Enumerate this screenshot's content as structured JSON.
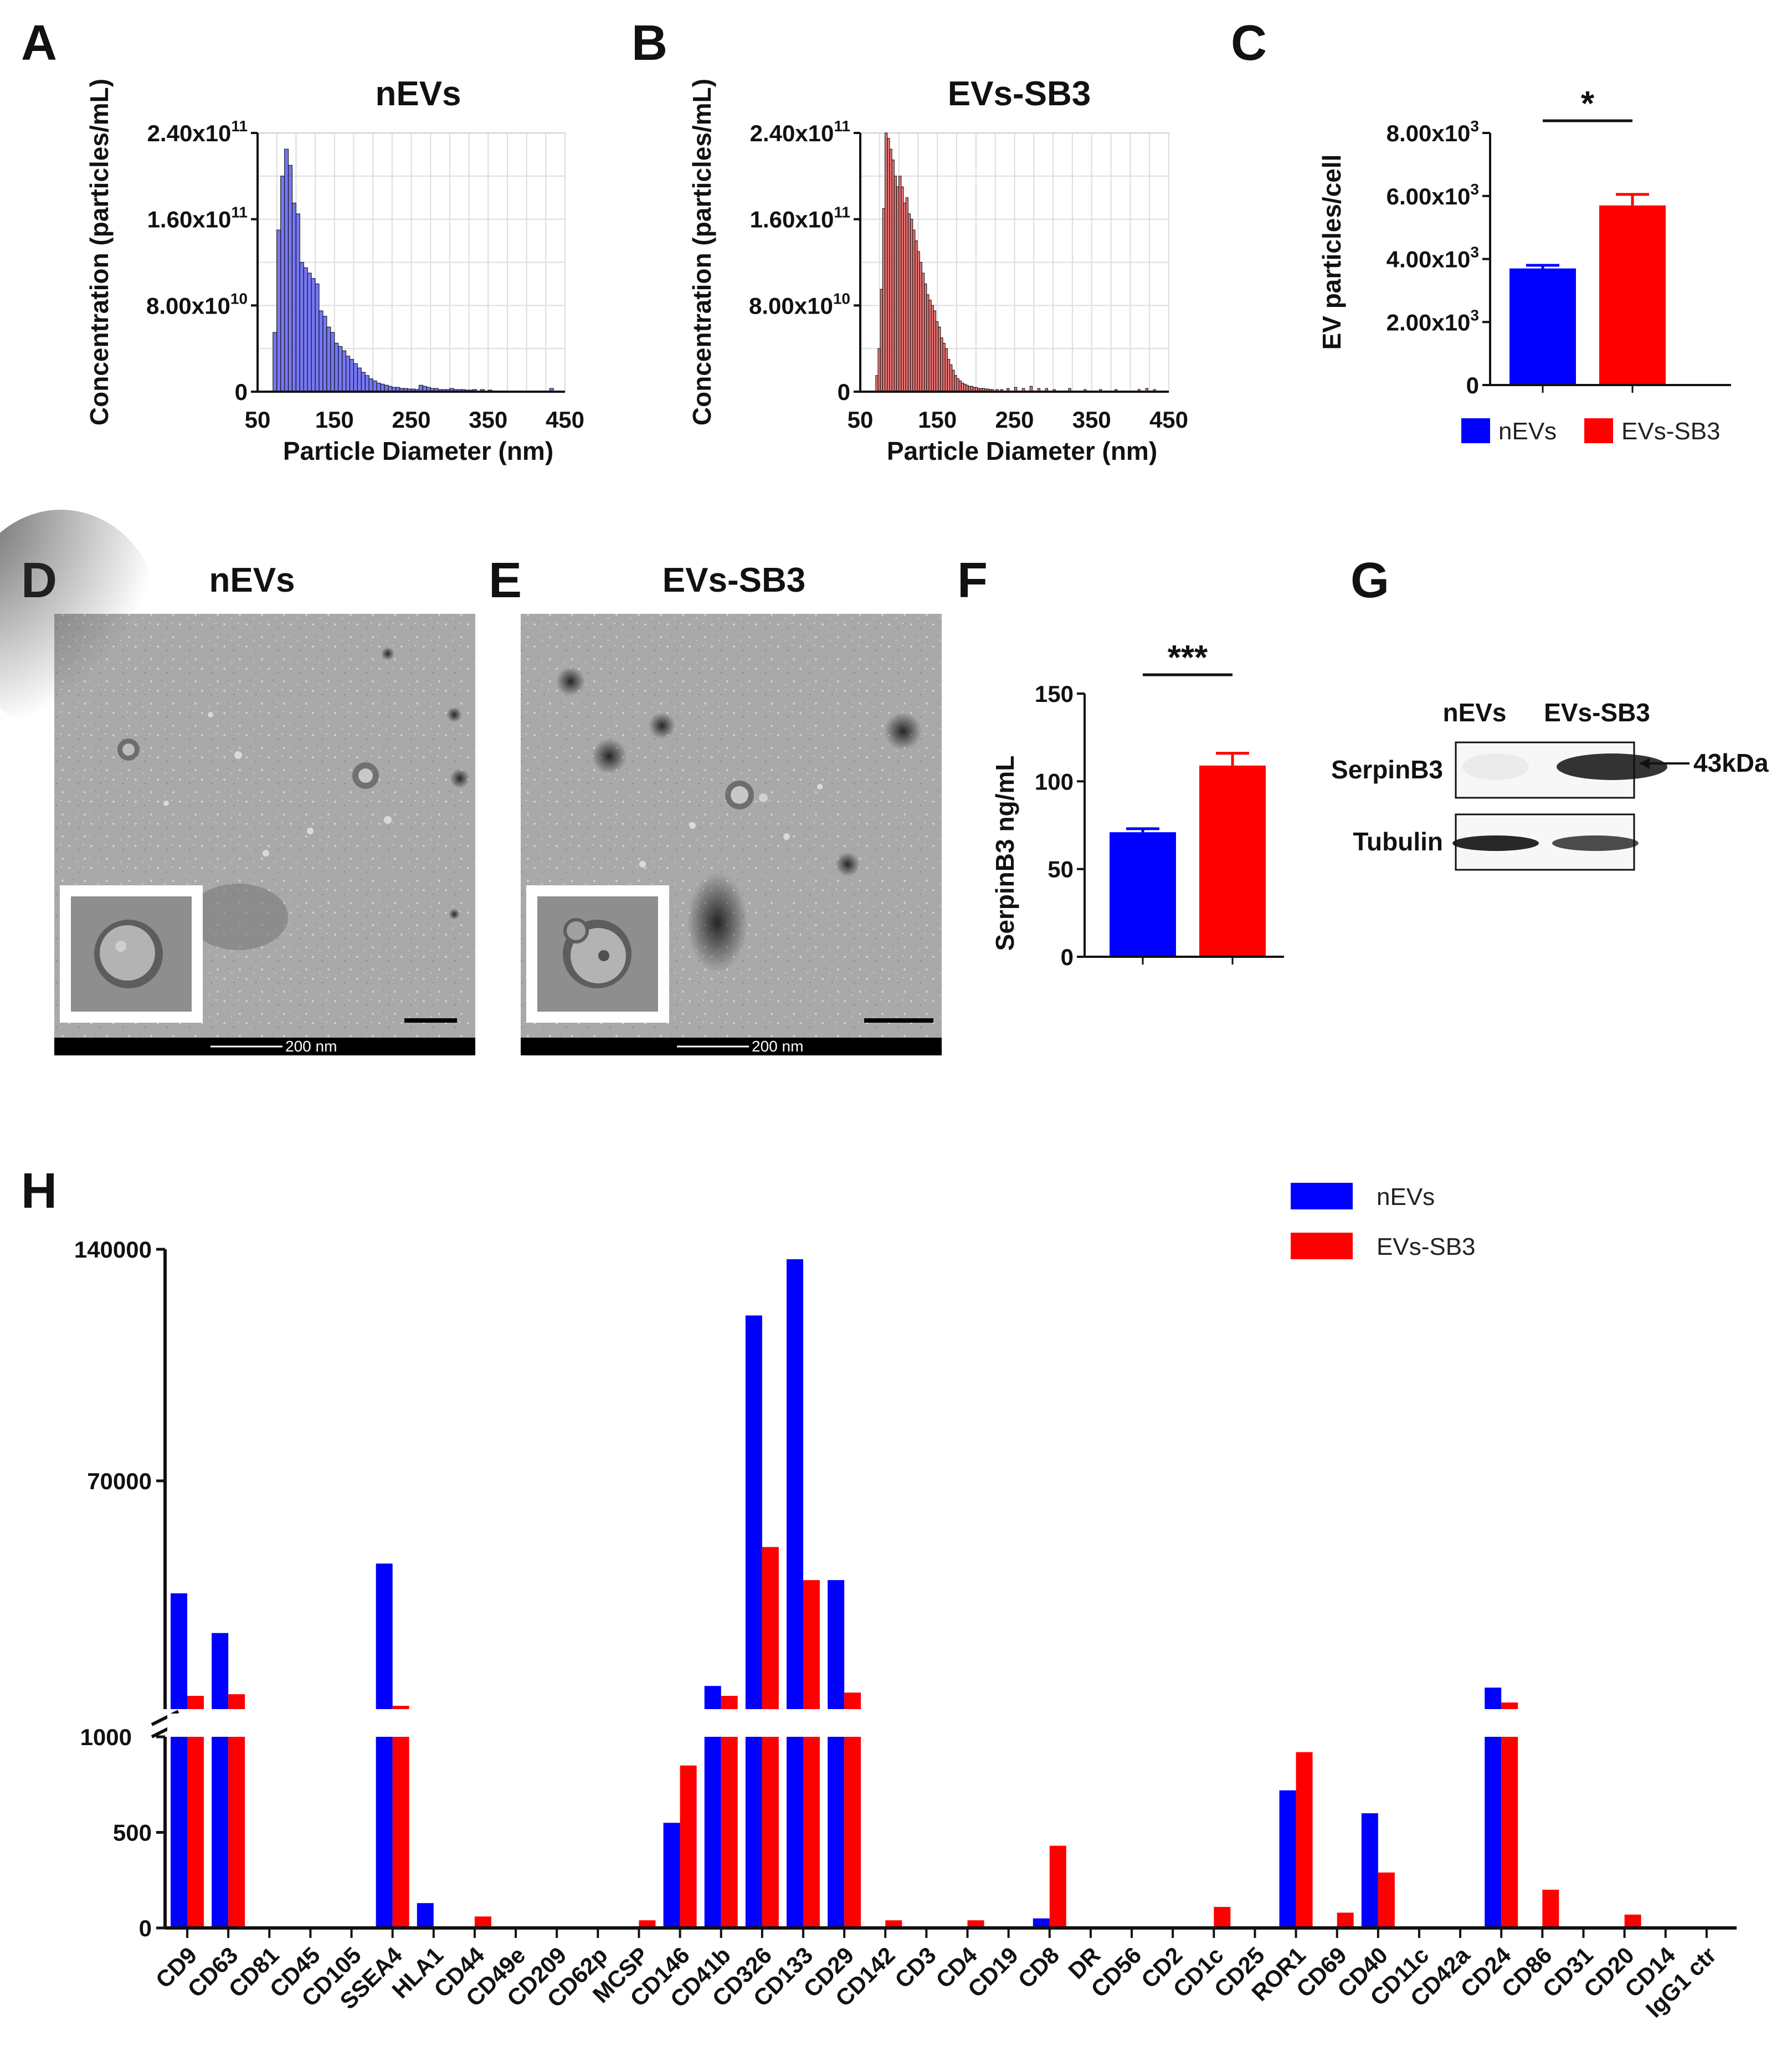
{
  "colors": {
    "nevs": "#0000FF",
    "evs_sb3": "#FF0000",
    "hist_nevs": "#6B6BF5",
    "hist_evs": "#F06B6B",
    "axis": "#111111",
    "grid": "#DDDDDD"
  },
  "panels": {
    "A": {
      "letter": "A",
      "title": "nEVs",
      "xlabel": "Particle Diameter (nm)",
      "ylabel": "Concentration (particles/mL)",
      "yticks": [
        {
          "value": 0,
          "base": "0",
          "exp": ""
        },
        {
          "value": 80000000000,
          "base": "8.00x10",
          "exp": "10"
        },
        {
          "value": 160000000000,
          "base": "1.60x10",
          "exp": "11"
        },
        {
          "value": 240000000000,
          "base": "2.40x10",
          "exp": "11"
        }
      ],
      "xticks": [
        "50",
        "150",
        "250",
        "350",
        "450"
      ]
    },
    "B": {
      "letter": "B",
      "title": "EVs-SB3",
      "xlabel": "Particle Diameter (nm)",
      "ylabel": "Concentration (particles/mL)",
      "yticks": [
        {
          "value": 0,
          "base": "0",
          "exp": ""
        },
        {
          "value": 80000000000,
          "base": "8.00x10",
          "exp": "10"
        },
        {
          "value": 160000000000,
          "base": "1.60x10",
          "exp": "11"
        },
        {
          "value": 240000000000,
          "base": "2.40x10",
          "exp": "11"
        }
      ],
      "xticks": [
        "50",
        "150",
        "250",
        "350",
        "450"
      ]
    },
    "C": {
      "letter": "C",
      "ylabel": "EV particles/cell",
      "significance": "*",
      "yticks": [
        {
          "value": 0,
          "base": "0",
          "exp": ""
        },
        {
          "value": 2000,
          "base": "2.00x10",
          "exp": "3"
        },
        {
          "value": 4000,
          "base": "4.00x10",
          "exp": "3"
        },
        {
          "value": 6000,
          "base": "6.00x10",
          "exp": "3"
        },
        {
          "value": 8000,
          "base": "8.00x10",
          "exp": "3"
        }
      ],
      "legend": [
        "nEVs",
        "EVs-SB3"
      ]
    },
    "D": {
      "letter": "D",
      "title": "nEVs",
      "scale_label": "200 nm"
    },
    "E": {
      "letter": "E",
      "title": "EVs-SB3",
      "scale_label": "200 nm"
    },
    "F": {
      "letter": "F",
      "ylabel": "SerpinB3 ng/mL",
      "significance": "***",
      "yticks": [
        "0",
        "50",
        "100",
        "150"
      ]
    },
    "G": {
      "letter": "G",
      "lanes": [
        "nEVs",
        "EVs-SB3"
      ],
      "rows": [
        "SerpinB3",
        "Tubulin"
      ],
      "marker": "43kDa",
      "intensity": {
        "serpinb3": [
          0.05,
          0.85
        ],
        "tubulin": [
          0.9,
          0.75
        ]
      }
    },
    "H": {
      "letter": "H",
      "yticks": [
        "0",
        "500",
        "1000",
        "70000",
        "140000"
      ],
      "legend": [
        "nEVs",
        "EVs-SB3"
      ]
    }
  },
  "chart_data": [
    {
      "panel": "A",
      "type": "bar",
      "title": "nEVs",
      "xlabel": "Particle Diameter (nm)",
      "ylabel": "Concentration (particles/mL)",
      "xlim": [
        50,
        450
      ],
      "ylim": [
        0,
        240000000000
      ],
      "bin_width": 5,
      "bin_start": [
        70,
        75,
        80,
        85,
        90,
        95,
        100,
        105,
        110,
        115,
        120,
        125,
        130,
        135,
        140,
        145,
        150,
        155,
        160,
        165,
        170,
        175,
        180,
        185,
        190,
        195,
        200,
        205,
        210,
        215,
        220,
        225,
        230,
        235,
        240,
        245,
        250,
        255,
        260,
        265,
        270,
        275,
        280,
        285,
        290,
        295,
        300,
        305,
        310,
        315,
        320,
        325,
        330,
        340,
        350,
        430
      ],
      "values": [
        55000000000,
        150000000000,
        200000000000,
        225000000000,
        210000000000,
        175000000000,
        165000000000,
        120000000000,
        115000000000,
        110000000000,
        105000000000,
        100000000000,
        75000000000,
        70000000000,
        60000000000,
        55000000000,
        45000000000,
        42000000000,
        38000000000,
        33000000000,
        30000000000,
        26000000000,
        22000000000,
        18000000000,
        15000000000,
        12000000000,
        10000000000,
        8000000000,
        7000000000,
        6000000000,
        5000000000,
        4000000000,
        4000000000,
        3000000000,
        3000000000,
        2500000000,
        2500000000,
        2000000000,
        6000000000,
        5000000000,
        4000000000,
        3000000000,
        3000000000,
        2000000000,
        2000000000,
        2000000000,
        3000000000,
        2000000000,
        2000000000,
        2000000000,
        1500000000,
        1500000000,
        2000000000,
        2000000000,
        1500000000,
        3000000000
      ]
    },
    {
      "panel": "B",
      "type": "bar",
      "title": "EVs-SB3",
      "xlabel": "Particle Diameter (nm)",
      "ylabel": "Concentration (particles/mL)",
      "xlim": [
        50,
        450
      ],
      "ylim": [
        0,
        240000000000
      ],
      "bin_width": 3,
      "bin_start": [
        70,
        73,
        76,
        79,
        82,
        85,
        88,
        91,
        94,
        97,
        100,
        103,
        106,
        109,
        112,
        115,
        118,
        121,
        124,
        127,
        130,
        133,
        136,
        139,
        142,
        145,
        148,
        151,
        154,
        157,
        160,
        163,
        166,
        169,
        172,
        175,
        178,
        181,
        184,
        187,
        190,
        193,
        196,
        199,
        202,
        205,
        208,
        211,
        214,
        217,
        220,
        226,
        232,
        240,
        250,
        260,
        270,
        280,
        290,
        300,
        320,
        340,
        360,
        380,
        410,
        420,
        430
      ],
      "values": [
        15000000000,
        40000000000,
        95000000000,
        170000000000,
        240000000000,
        235000000000,
        225000000000,
        215000000000,
        200000000000,
        190000000000,
        200000000000,
        190000000000,
        175000000000,
        180000000000,
        165000000000,
        160000000000,
        150000000000,
        140000000000,
        130000000000,
        120000000000,
        110000000000,
        100000000000,
        90000000000,
        85000000000,
        80000000000,
        75000000000,
        65000000000,
        60000000000,
        50000000000,
        45000000000,
        40000000000,
        30000000000,
        25000000000,
        20000000000,
        15000000000,
        12000000000,
        10000000000,
        8000000000,
        7000000000,
        6000000000,
        5000000000,
        5000000000,
        4000000000,
        4000000000,
        3000000000,
        3000000000,
        3000000000,
        2500000000,
        2500000000,
        2000000000,
        2000000000,
        2000000000,
        2000000000,
        3000000000,
        4000000000,
        3000000000,
        5000000000,
        3000000000,
        3000000000,
        2000000000,
        3000000000,
        2000000000,
        2000000000,
        2000000000,
        2000000000,
        3000000000,
        2000000000
      ]
    },
    {
      "panel": "C",
      "type": "bar",
      "ylabel": "EV particles/cell",
      "categories": [
        "nEVs",
        "EVs-SB3"
      ],
      "values": [
        3700,
        5700
      ],
      "errors": [
        100,
        350
      ],
      "ylim": [
        0,
        8000
      ],
      "significance": "*"
    },
    {
      "panel": "F",
      "type": "bar",
      "ylabel": "SerpinB3 ng/mL",
      "categories": [
        "nEVs",
        "EVs-SB3"
      ],
      "values": [
        71,
        109
      ],
      "errors": [
        2,
        7
      ],
      "ylim": [
        0,
        150
      ],
      "significance": "***"
    },
    {
      "panel": "H",
      "type": "bar",
      "categories": [
        "CD9",
        "CD63",
        "CD81",
        "CD45",
        "CD105",
        "SSEA4",
        "HLA1",
        "CD44",
        "CD49e",
        "CD209",
        "CD62p",
        "MCSP",
        "CD146",
        "CD41b",
        "CD326",
        "CD133",
        "CD29",
        "CD142",
        "CD3",
        "CD4",
        "CD19",
        "CD8",
        "DR",
        "CD56",
        "CD2",
        "CD1c",
        "CD25",
        "ROR1",
        "CD69",
        "CD40",
        "CD11c",
        "CD42a",
        "CD24",
        "CD86",
        "CD31",
        "CD20",
        "CD14",
        "IgG1 ctr"
      ],
      "series": [
        {
          "name": "nEVs",
          "values": [
            36000,
            24000,
            0,
            0,
            0,
            45000,
            130,
            0,
            0,
            0,
            0,
            0,
            550,
            8000,
            120000,
            137000,
            40000,
            0,
            0,
            0,
            0,
            50,
            0,
            0,
            0,
            0,
            0,
            720,
            0,
            600,
            0,
            0,
            7500,
            0,
            0,
            0,
            0,
            0
          ]
        },
        {
          "name": "EVs-SB3",
          "values": [
            5000,
            5500,
            0,
            0,
            0,
            2000,
            0,
            60,
            0,
            0,
            0,
            40,
            850,
            5000,
            50000,
            40000,
            6000,
            40,
            0,
            40,
            0,
            430,
            0,
            0,
            0,
            110,
            0,
            920,
            80,
            290,
            0,
            0,
            3000,
            200,
            0,
            70,
            0,
            0
          ]
        }
      ],
      "y_axis": "broken: 0-1000 linear lower segment, 1000-140000 upper segment",
      "yticks": [
        0,
        500,
        1000,
        70000,
        140000
      ]
    }
  ]
}
